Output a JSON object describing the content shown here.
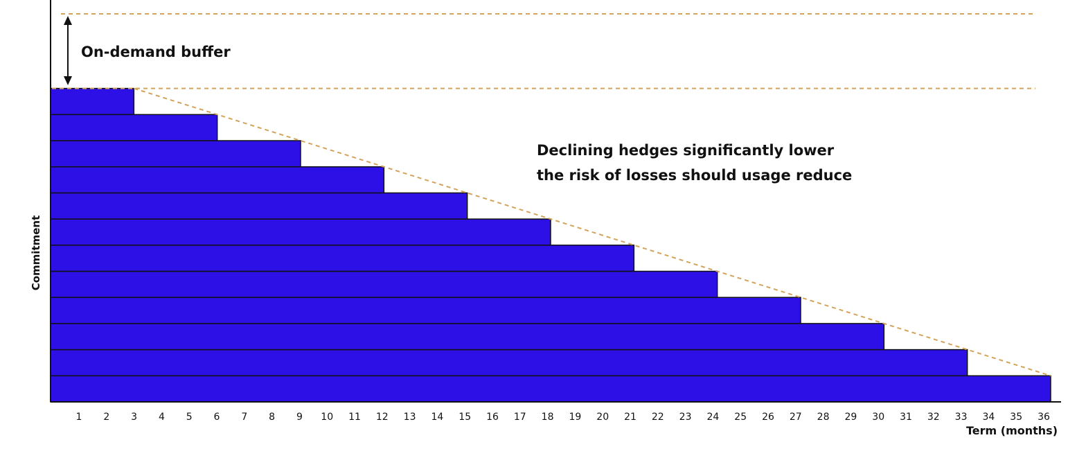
{
  "chart_data": {
    "type": "bar",
    "orientation": "horizontal-stacked-layers",
    "xlabel": "Term (months)",
    "ylabel": "Commitment",
    "x_ticks": [
      1,
      2,
      3,
      4,
      5,
      6,
      7,
      8,
      9,
      10,
      11,
      12,
      13,
      14,
      15,
      16,
      17,
      18,
      19,
      20,
      21,
      22,
      23,
      24,
      25,
      26,
      27,
      28,
      29,
      30,
      31,
      32,
      33,
      34,
      35,
      36
    ],
    "xlim": [
      0,
      36
    ],
    "layers": [
      {
        "layer": 1,
        "end_month": 36
      },
      {
        "layer": 2,
        "end_month": 33
      },
      {
        "layer": 3,
        "end_month": 30
      },
      {
        "layer": 4,
        "end_month": 27
      },
      {
        "layer": 5,
        "end_month": 24
      },
      {
        "layer": 6,
        "end_month": 21
      },
      {
        "layer": 7,
        "end_month": 18
      },
      {
        "layer": 8,
        "end_month": 15
      },
      {
        "layer": 9,
        "end_month": 12
      },
      {
        "layer": 10,
        "end_month": 9
      },
      {
        "layer": 11,
        "end_month": 6
      },
      {
        "layer": 12,
        "end_month": 3
      }
    ],
    "annotations": {
      "buffer_label": "On-demand buffer",
      "decline_line1": "Declining hedges significantly lower",
      "decline_line2": "the risk of losses should usage reduce"
    },
    "colors": {
      "bar_fill": "#2d10e6",
      "bar_stroke": "#111111",
      "guide_line": "#d4a35a"
    },
    "grid": false
  }
}
